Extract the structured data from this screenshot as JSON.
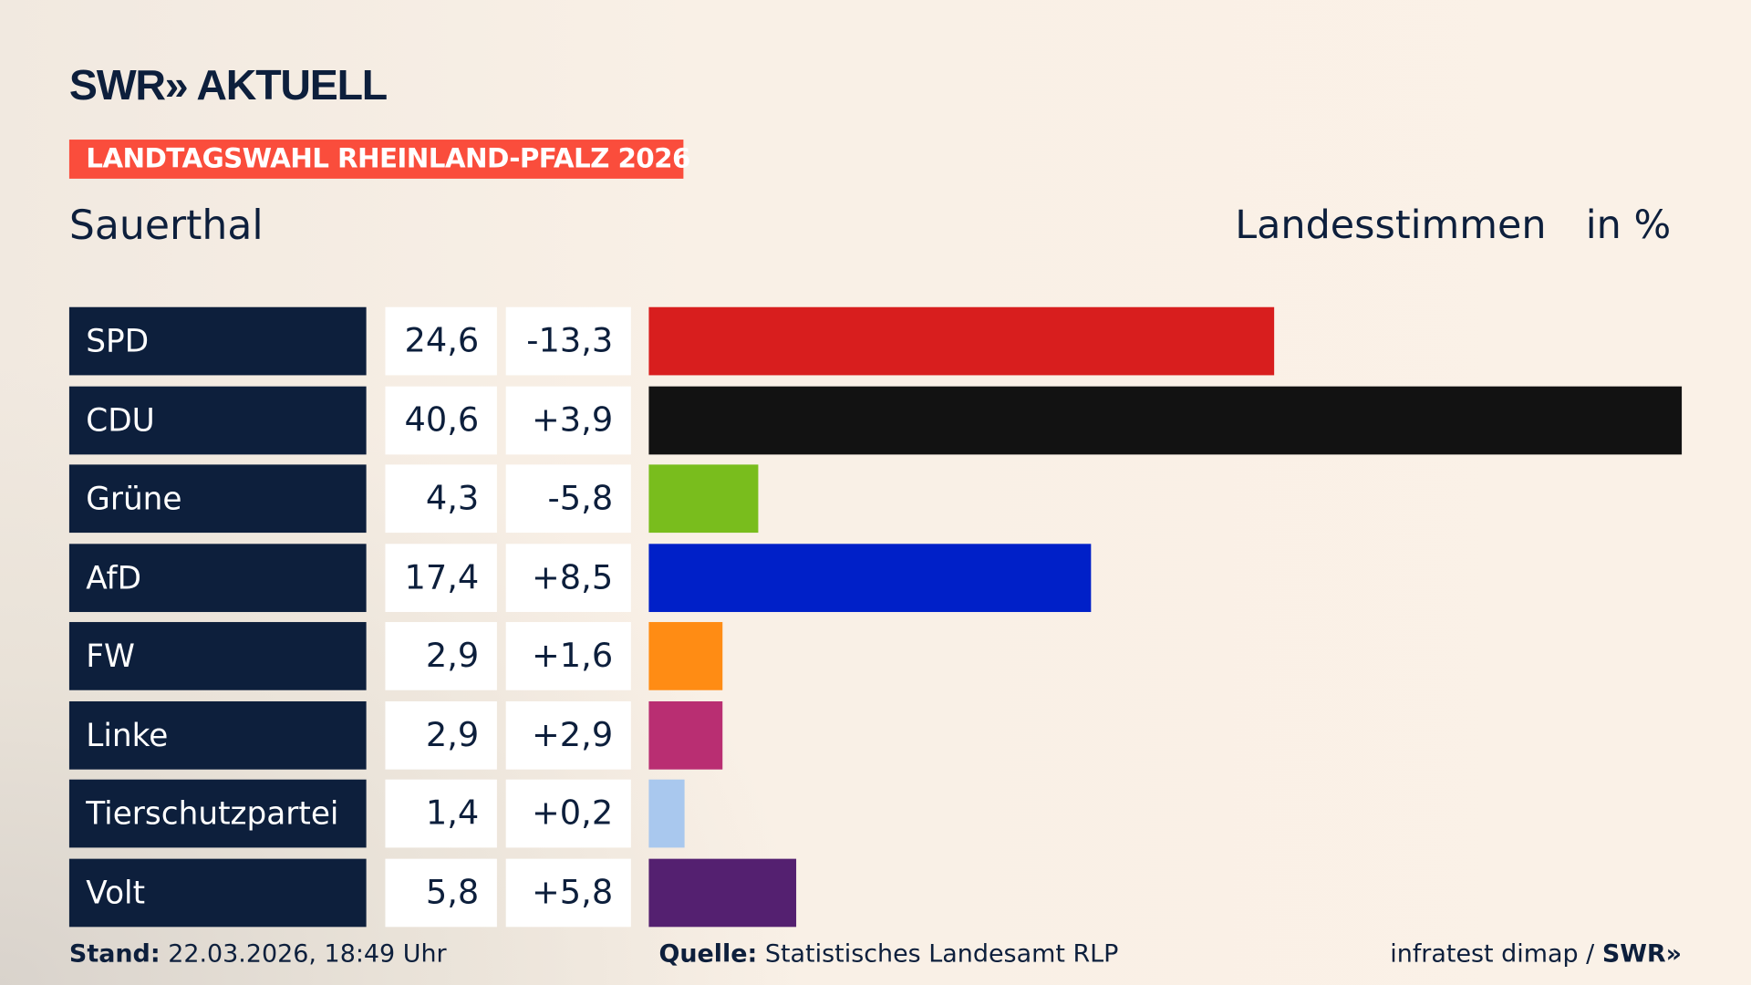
{
  "header": {
    "logo": "SWR» AKTUELL",
    "banner": "LANDTAGSWAHL RHEINLAND-PFALZ 2026",
    "location": "Sauerthal",
    "vote_type": "Landesstimmen",
    "unit": "in %"
  },
  "chart_data": {
    "type": "bar",
    "orientation": "horizontal",
    "categories": [
      "SPD",
      "CDU",
      "Grüne",
      "AfD",
      "FW",
      "Linke",
      "Tierschutzpartei",
      "Volt"
    ],
    "values": [
      24.6,
      40.6,
      4.3,
      17.4,
      2.9,
      2.9,
      1.4,
      5.8
    ],
    "value_labels": [
      "24,6",
      "40,6",
      "4,3",
      "17,4",
      "2,9",
      "2,9",
      "1,4",
      "5,8"
    ],
    "diff_labels": [
      "-13,3",
      "+3,9",
      "-5,8",
      "+8,5",
      "+1,6",
      "+2,9",
      "+0,2",
      "+5,8"
    ],
    "colors": [
      "#d81e1e",
      "#121212",
      "#79bd1d",
      "#0020c8",
      "#ff8c14",
      "#b92e72",
      "#a9c8ee",
      "#542070"
    ],
    "xlim": [
      0,
      40.6
    ]
  },
  "footer": {
    "stand_label": "Stand:",
    "stand": "22.03.2026, 18:49 Uhr",
    "source_label": "Quelle:",
    "source": "Statistisches Landesamt RLP",
    "credit": "infratest dimap / ",
    "credit_logo": "SWR»"
  }
}
